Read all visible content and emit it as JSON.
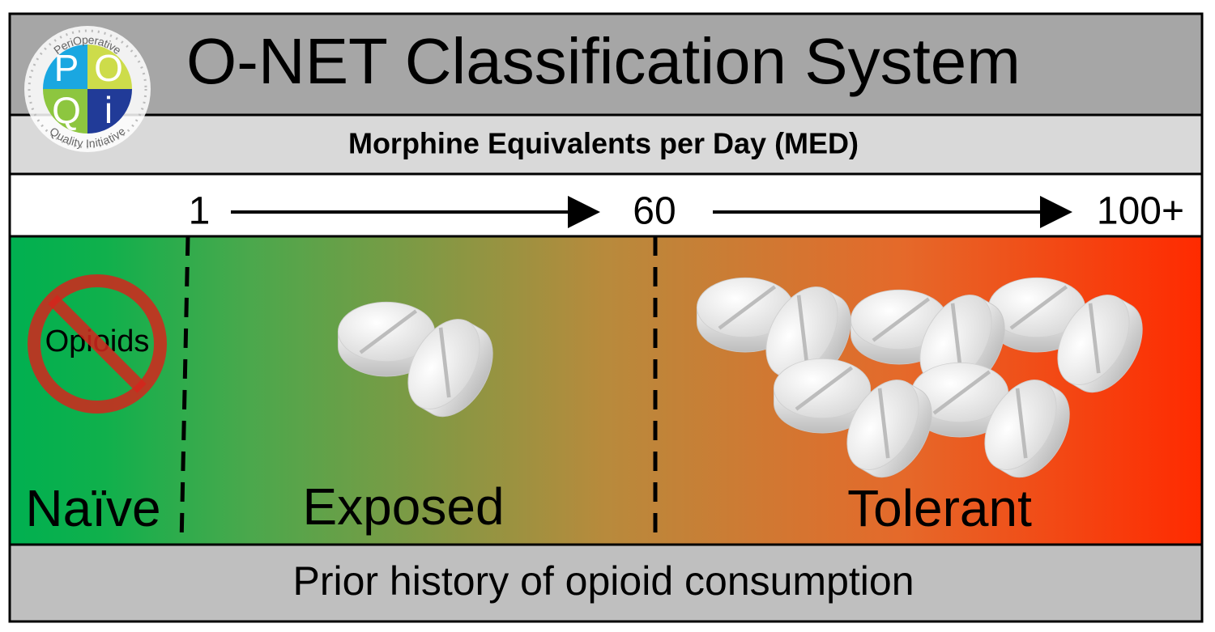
{
  "header": {
    "title": "O-NET Classification System",
    "subtitle": "Morphine Equivalents per Day (MED)"
  },
  "logo": {
    "top_text": "PeriOperative",
    "letters": [
      "P",
      "O",
      "Q",
      "i"
    ],
    "bottom_text": "Quality Initiative"
  },
  "scale": {
    "marks": [
      "1",
      "60",
      "100+"
    ]
  },
  "categories": {
    "no_opioids_label": "Opioids",
    "labels": [
      "Naïve",
      "Exposed",
      "Tolerant"
    ]
  },
  "footer": {
    "text": "Prior history of opioid consumption"
  }
}
